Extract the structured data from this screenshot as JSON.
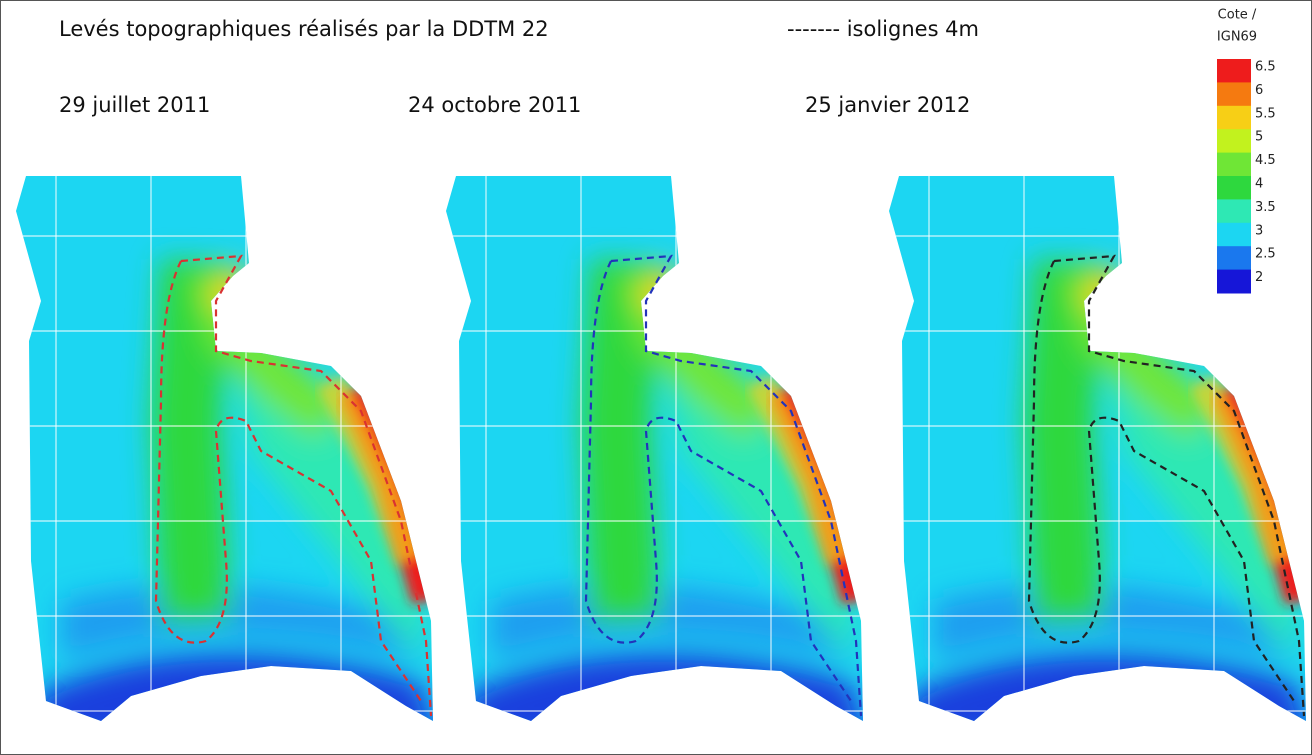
{
  "header": {
    "title": "Levés topographiques réalisés par la DDTM 22",
    "contour_note": "------- isolignes 4m"
  },
  "panels": [
    {
      "date": "29 juillet 2011"
    },
    {
      "date": "24 octobre 2011"
    },
    {
      "date": "25 janvier 2012"
    }
  ],
  "legend": {
    "title_lines": [
      "Cote /",
      "IGN69"
    ],
    "items": [
      {
        "label": "6.5",
        "color": "#ee1c1c"
      },
      {
        "label": "6",
        "color": "#f57a10"
      },
      {
        "label": "5.5",
        "color": "#f7cf16"
      },
      {
        "label": "5",
        "color": "#c2f21e"
      },
      {
        "label": "4.5",
        "color": "#6fe636"
      },
      {
        "label": "4",
        "color": "#2ed83e"
      },
      {
        "label": "3.5",
        "color": "#2ee8b4"
      },
      {
        "label": "3",
        "color": "#1cd6f2"
      },
      {
        "label": "2.5",
        "color": "#1a78ee"
      },
      {
        "label": "2",
        "color": "#1616d8"
      }
    ]
  }
}
